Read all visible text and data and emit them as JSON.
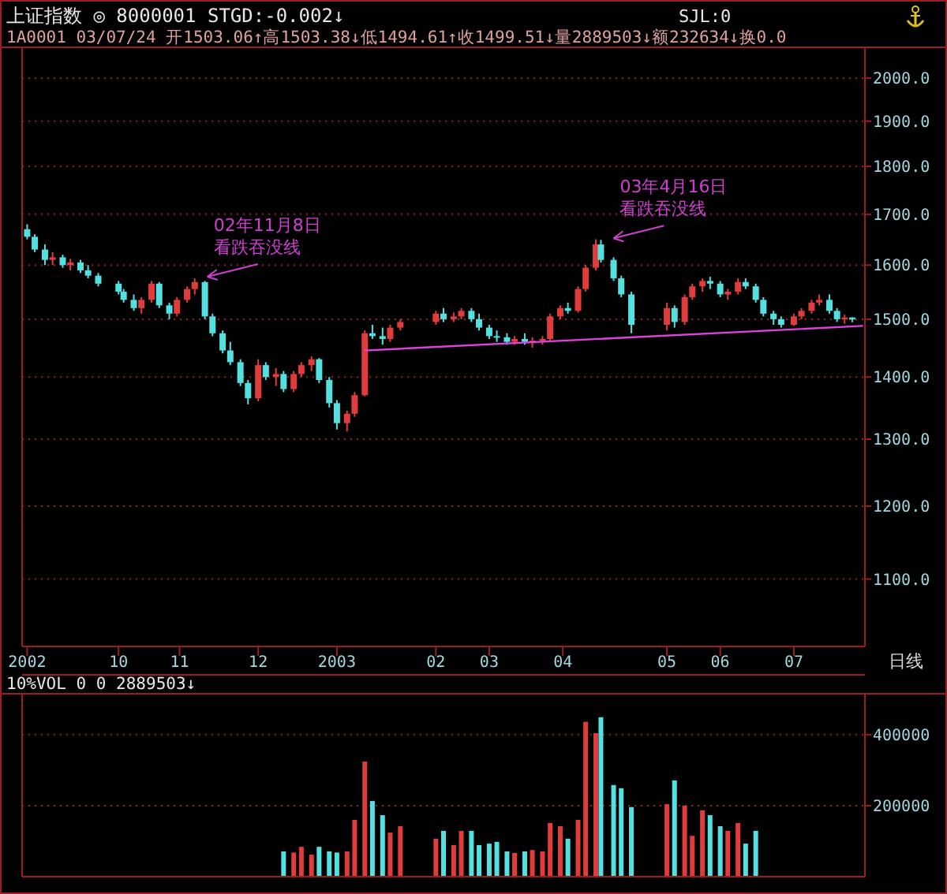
{
  "chart_data": [
    {
      "type": "candlestick",
      "title": "上证指数 ◎ 8000001 STGD:-0.002↓",
      "subtitle": "1A0001 03/07/24 开1503.06↑高1503.38↓低1494.61↑收1499.51↓量2889503↓额232634↓换0.0",
      "log": "y",
      "grid": "y",
      "xlim": [
        "2002-08-31",
        "2003-07-29"
      ],
      "ylim": [
        1015,
        2075
      ],
      "xticks": [
        {
          "value": "2002-09-02",
          "label": "2002"
        },
        {
          "value": "2002-10-08",
          "label": "10"
        },
        {
          "value": "2002-11-01",
          "label": "11"
        },
        {
          "value": "2002-12-02",
          "label": "12"
        },
        {
          "value": "2003-01-02",
          "label": "2003"
        },
        {
          "value": "2003-02-10",
          "label": "02"
        },
        {
          "value": "2003-03-03",
          "label": "03"
        },
        {
          "value": "2003-04-01",
          "label": "04"
        },
        {
          "value": "2003-05-12",
          "label": "05"
        },
        {
          "value": "2003-06-02",
          "label": "06"
        },
        {
          "value": "2003-07-01",
          "label": "07"
        }
      ],
      "yticks": [
        {
          "value": 1100,
          "label": "1100.0"
        },
        {
          "value": 1200,
          "label": "1200.0"
        },
        {
          "value": 1300,
          "label": "1300.0"
        },
        {
          "value": 1400,
          "label": "1400.0"
        },
        {
          "value": 1500,
          "label": "1500.0"
        },
        {
          "value": 1600,
          "label": "1600.0"
        },
        {
          "value": 1700,
          "label": "1700.0"
        },
        {
          "value": 1800,
          "label": "1800.0"
        },
        {
          "value": 1900,
          "label": "1900.0"
        },
        {
          "value": 2000,
          "label": "2000.0"
        }
      ],
      "x": [
        "2002-09-02",
        "2002-09-05",
        "2002-09-09",
        "2002-09-12",
        "2002-09-16",
        "2002-09-19",
        "2002-09-23",
        "2002-09-26",
        "2002-09-30",
        "2002-10-08",
        "2002-10-10",
        "2002-10-14",
        "2002-10-17",
        "2002-10-21",
        "2002-10-24",
        "2002-10-28",
        "2002-10-31",
        "2002-11-04",
        "2002-11-07",
        "2002-11-11",
        "2002-11-14",
        "2002-11-18",
        "2002-11-21",
        "2002-11-25",
        "2002-11-28",
        "2002-12-02",
        "2002-12-05",
        "2002-12-09",
        "2002-12-12",
        "2002-12-16",
        "2002-12-19",
        "2002-12-23",
        "2002-12-26",
        "2002-12-30",
        "2003-01-02",
        "2003-01-06",
        "2003-01-09",
        "2003-01-13",
        "2003-01-16",
        "2003-01-20",
        "2003-01-23",
        "2003-01-27",
        "2003-02-10",
        "2003-02-13",
        "2003-02-17",
        "2003-02-20",
        "2003-02-24",
        "2003-02-27",
        "2003-03-03",
        "2003-03-06",
        "2003-03-10",
        "2003-03-13",
        "2003-03-17",
        "2003-03-20",
        "2003-03-24",
        "2003-03-27",
        "2003-03-31",
        "2003-04-03",
        "2003-04-07",
        "2003-04-10",
        "2003-04-14",
        "2003-04-16",
        "2003-04-21",
        "2003-04-24",
        "2003-04-28",
        "2003-05-12",
        "2003-05-15",
        "2003-05-19",
        "2003-05-22",
        "2003-05-26",
        "2003-05-29",
        "2003-06-02",
        "2003-06-05",
        "2003-06-09",
        "2003-06-12",
        "2003-06-16",
        "2003-06-19",
        "2003-06-23",
        "2003-06-26",
        "2003-07-01",
        "2003-07-04",
        "2003-07-08",
        "2003-07-11",
        "2003-07-15",
        "2003-07-18",
        "2003-07-21",
        "2003-07-24"
      ],
      "ohlc": [
        [
          1670,
          1680,
          1650,
          1655
        ],
        [
          1655,
          1660,
          1625,
          1630
        ],
        [
          1630,
          1640,
          1600,
          1610
        ],
        [
          1610,
          1625,
          1600,
          1615
        ],
        [
          1615,
          1620,
          1595,
          1600
        ],
        [
          1600,
          1612,
          1590,
          1605
        ],
        [
          1605,
          1610,
          1585,
          1590
        ],
        [
          1590,
          1600,
          1575,
          1580
        ],
        [
          1580,
          1585,
          1560,
          1565
        ],
        [
          1565,
          1570,
          1545,
          1550
        ],
        [
          1550,
          1555,
          1530,
          1535
        ],
        [
          1535,
          1545,
          1515,
          1520
        ],
        [
          1520,
          1540,
          1510,
          1535
        ],
        [
          1535,
          1570,
          1530,
          1565
        ],
        [
          1565,
          1568,
          1520,
          1525
        ],
        [
          1525,
          1530,
          1500,
          1510
        ],
        [
          1510,
          1540,
          1505,
          1535
        ],
        [
          1535,
          1560,
          1530,
          1555
        ],
        [
          1555,
          1575,
          1545,
          1568
        ],
        [
          1568,
          1570,
          1500,
          1505
        ],
        [
          1505,
          1510,
          1470,
          1475
        ],
        [
          1475,
          1480,
          1440,
          1445
        ],
        [
          1445,
          1460,
          1420,
          1425
        ],
        [
          1425,
          1430,
          1385,
          1390
        ],
        [
          1390,
          1395,
          1355,
          1365
        ],
        [
          1365,
          1430,
          1360,
          1420
        ],
        [
          1420,
          1425,
          1395,
          1400
        ],
        [
          1400,
          1415,
          1385,
          1405
        ],
        [
          1405,
          1410,
          1375,
          1380
        ],
        [
          1380,
          1410,
          1375,
          1405
        ],
        [
          1405,
          1425,
          1400,
          1420
        ],
        [
          1420,
          1435,
          1410,
          1430
        ],
        [
          1430,
          1432,
          1390,
          1395
        ],
        [
          1395,
          1400,
          1350,
          1357
        ],
        [
          1357,
          1362,
          1315,
          1325
        ],
        [
          1325,
          1345,
          1312,
          1340
        ],
        [
          1340,
          1375,
          1335,
          1370
        ],
        [
          1370,
          1480,
          1368,
          1475
        ],
        [
          1475,
          1490,
          1465,
          1470
        ],
        [
          1470,
          1485,
          1455,
          1465
        ],
        [
          1465,
          1490,
          1460,
          1485
        ],
        [
          1485,
          1500,
          1480,
          1495
        ],
        [
          1495,
          1515,
          1490,
          1510
        ],
        [
          1510,
          1520,
          1495,
          1500
        ],
        [
          1500,
          1512,
          1495,
          1505
        ],
        [
          1505,
          1520,
          1500,
          1515
        ],
        [
          1515,
          1520,
          1495,
          1500
        ],
        [
          1500,
          1510,
          1480,
          1485
        ],
        [
          1485,
          1490,
          1465,
          1470
        ],
        [
          1470,
          1480,
          1460,
          1468
        ],
        [
          1468,
          1475,
          1455,
          1460
        ],
        [
          1460,
          1470,
          1455,
          1465
        ],
        [
          1465,
          1475,
          1455,
          1460
        ],
        [
          1460,
          1468,
          1450,
          1462
        ],
        [
          1462,
          1470,
          1455,
          1465
        ],
        [
          1465,
          1510,
          1460,
          1505
        ],
        [
          1505,
          1525,
          1500,
          1520
        ],
        [
          1520,
          1530,
          1510,
          1515
        ],
        [
          1515,
          1560,
          1512,
          1555
        ],
        [
          1555,
          1600,
          1550,
          1595
        ],
        [
          1595,
          1650,
          1590,
          1640
        ],
        [
          1640,
          1649,
          1605,
          1610
        ],
        [
          1610,
          1615,
          1570,
          1575
        ],
        [
          1575,
          1580,
          1540,
          1545
        ],
        [
          1545,
          1550,
          1475,
          1490
        ],
        [
          1490,
          1530,
          1480,
          1520
        ],
        [
          1520,
          1525,
          1485,
          1495
        ],
        [
          1495,
          1545,
          1490,
          1540
        ],
        [
          1540,
          1565,
          1535,
          1560
        ],
        [
          1560,
          1575,
          1550,
          1570
        ],
        [
          1570,
          1578,
          1555,
          1565
        ],
        [
          1565,
          1570,
          1540,
          1545
        ],
        [
          1545,
          1555,
          1535,
          1550
        ],
        [
          1550,
          1575,
          1545,
          1568
        ],
        [
          1568,
          1575,
          1555,
          1560
        ],
        [
          1560,
          1565,
          1530,
          1535
        ],
        [
          1535,
          1540,
          1505,
          1510
        ],
        [
          1510,
          1515,
          1490,
          1500
        ],
        [
          1500,
          1505,
          1485,
          1490
        ],
        [
          1490,
          1510,
          1488,
          1505
        ],
        [
          1505,
          1520,
          1500,
          1515
        ],
        [
          1515,
          1535,
          1510,
          1530
        ],
        [
          1530,
          1545,
          1525,
          1535
        ],
        [
          1535,
          1545,
          1510,
          1515
        ],
        [
          1515,
          1520,
          1495,
          1500
        ],
        [
          1500,
          1508,
          1492,
          1503
        ],
        [
          1503.06,
          1503.38,
          1494.61,
          1499.51
        ]
      ],
      "series": [
        {
          "type": "line",
          "color": "#e040e0",
          "x": [
            "2003-01-13",
            "2003-07-28"
          ],
          "values": [
            1445,
            1488
          ]
        }
      ],
      "annotations": [
        {
          "text": "02年11月8日",
          "x": "2002-11-07",
          "y": 1575
        },
        {
          "text": "看跌吞没线",
          "x": "2002-11-07",
          "y": 1575
        },
        {
          "text": "03年4月16日",
          "x": "2003-04-16",
          "y": 1649
        },
        {
          "text": "看跌吞没线",
          "x": "2003-04-16",
          "y": 1649
        },
        "SJL:0",
        "日线"
      ]
    },
    {
      "type": "bar",
      "title": "10%VOL 0 0 2889503↓",
      "grid": "y",
      "tick_labels": "y",
      "xlim": [
        "2002-08-31",
        "2003-07-29"
      ],
      "ylim": [
        0,
        515000
      ],
      "yticks": [
        200000,
        400000
      ],
      "x": [
        "2002-12-12",
        "2002-12-16",
        "2002-12-19",
        "2002-12-23",
        "2002-12-26",
        "2002-12-30",
        "2003-01-02",
        "2003-01-06",
        "2003-01-09",
        "2003-01-13",
        "2003-01-16",
        "2003-01-20",
        "2003-01-23",
        "2003-01-27",
        "2003-02-10",
        "2003-02-13",
        "2003-02-17",
        "2003-02-20",
        "2003-02-24",
        "2003-02-27",
        "2003-03-03",
        "2003-03-06",
        "2003-03-10",
        "2003-03-13",
        "2003-03-17",
        "2003-03-20",
        "2003-03-24",
        "2003-03-27",
        "2003-03-31",
        "2003-04-03",
        "2003-04-07",
        "2003-04-10",
        "2003-04-14",
        "2003-04-16",
        "2003-04-21",
        "2003-04-24",
        "2003-04-28",
        "2003-05-12",
        "2003-05-15",
        "2003-05-19",
        "2003-05-22",
        "2003-05-26",
        "2003-05-29",
        "2003-06-02",
        "2003-06-05",
        "2003-06-09",
        "2003-06-12",
        "2003-06-16"
      ],
      "values": [
        71000,
        68000,
        84000,
        62000,
        84000,
        71000,
        68000,
        71000,
        160000,
        324000,
        213000,
        173000,
        124000,
        142000,
        107000,
        129000,
        89000,
        129000,
        129000,
        89000,
        93000,
        98000,
        71000,
        67000,
        71000,
        75000,
        71000,
        151000,
        142000,
        107000,
        160000,
        436000,
        404000,
        449000,
        258000,
        249000,
        196000,
        204000,
        271000,
        200000,
        115000,
        187000,
        173000,
        142000,
        129000,
        151000,
        93000,
        129000
      ],
      "colors": [
        "#54e0e0",
        "#e03c3c",
        "#e03c3c",
        "#e03c3c",
        "#54e0e0",
        "#54e0e0",
        "#54e0e0",
        "#e03c3c",
        "#e03c3c",
        "#e03c3c",
        "#54e0e0",
        "#54e0e0",
        "#e03c3c",
        "#e03c3c",
        "#e03c3c",
        "#54e0e0",
        "#e03c3c",
        "#e03c3c",
        "#54e0e0",
        "#54e0e0",
        "#54e0e0",
        "#54e0e0",
        "#54e0e0",
        "#e03c3c",
        "#54e0e0",
        "#e03c3c",
        "#e03c3c",
        "#e03c3c",
        "#e03c3c",
        "#54e0e0",
        "#e03c3c",
        "#e03c3c",
        "#e03c3c",
        "#54e0e0",
        "#54e0e0",
        "#54e0e0",
        "#54e0e0",
        "#e03c3c",
        "#54e0e0",
        "#e03c3c",
        "#e03c3c",
        "#e03c3c",
        "#54e0e0",
        "#54e0e0",
        "#e03c3c",
        "#e03c3c",
        "#54e0e0",
        "#54e0e0"
      ]
    }
  ]
}
